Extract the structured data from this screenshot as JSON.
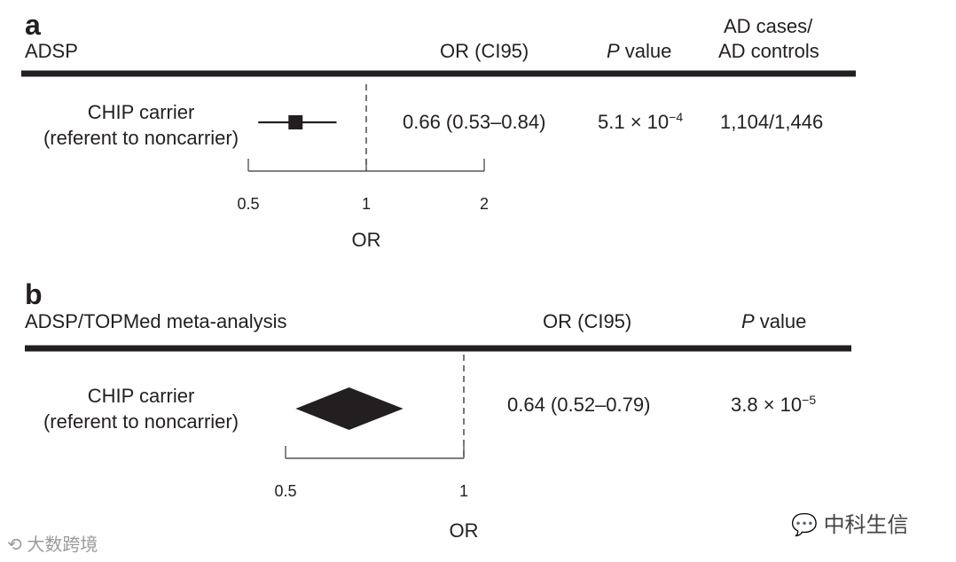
{
  "chart_data": [
    {
      "panel": "a",
      "type": "forest",
      "study": "ADSP",
      "columns": {
        "or": "OR (CI95)",
        "p_prefix": "P",
        "p_suffix": " value",
        "cases_line1": "AD cases/",
        "cases_line2": "AD controls"
      },
      "rows": [
        {
          "label_line1": "CHIP carrier",
          "label_line2": "(referent to noncarrier)",
          "or": 0.66,
          "ci_low": 0.53,
          "ci_high": 0.84,
          "or_text": "0.66 (0.53–0.84)",
          "p_mantissa": "5.1 × 10",
          "p_exp": "−4",
          "cases_controls": "1,104/1,446",
          "marker": "square"
        }
      ],
      "xaxis": {
        "scale": "log",
        "ticks": [
          0.5,
          1,
          2
        ],
        "tick_labels": [
          "0.5",
          "1",
          "2"
        ],
        "xlabel": "OR",
        "xlim": [
          0.5,
          2
        ]
      },
      "reference_line": 1
    },
    {
      "panel": "b",
      "type": "forest",
      "study": "ADSP/TOPMed meta-analysis",
      "columns": {
        "or": "OR (CI95)",
        "p_prefix": "P",
        "p_suffix": " value"
      },
      "rows": [
        {
          "label_line1": "CHIP carrier",
          "label_line2": "(referent to noncarrier)",
          "or": 0.64,
          "ci_low": 0.52,
          "ci_high": 0.79,
          "or_text": "0.64 (0.52–0.79)",
          "p_mantissa": "3.8 × 10",
          "p_exp": "−5",
          "marker": "diamond"
        }
      ],
      "xaxis": {
        "scale": "log",
        "ticks": [
          0.5,
          1
        ],
        "tick_labels": [
          "0.5",
          "1"
        ],
        "xlabel": "OR",
        "xlim": [
          0.5,
          1
        ]
      },
      "reference_line": 1
    }
  ],
  "watermarks": {
    "left": "大数跨境",
    "right": "中科生信"
  },
  "colors": {
    "ink": "#231f20",
    "watermark": "#9a9a9a"
  }
}
